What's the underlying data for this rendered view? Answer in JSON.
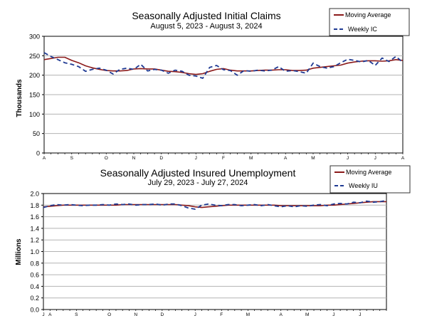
{
  "chart_data": [
    {
      "type": "line",
      "title": "Seasonally Adjusted Initial Claims",
      "subtitle": "August 5, 2023 - August 3, 2024",
      "xlabel": "",
      "ylabel": "Thousands",
      "ylim": [
        0,
        300
      ],
      "yticks": [
        "0",
        "50",
        "100",
        "150",
        "200",
        "250",
        "300"
      ],
      "ytick_values": [
        0,
        50,
        100,
        150,
        200,
        250,
        300
      ],
      "grid": true,
      "legend": "top-right",
      "x_month_labels": [
        "A",
        "S",
        "O",
        "N",
        "D",
        "J",
        "F",
        "M",
        "A",
        "M",
        "J",
        "J",
        "A"
      ],
      "x_month_positions": [
        0,
        4,
        9,
        13,
        17,
        22,
        26,
        30,
        35,
        39,
        44,
        48,
        52
      ],
      "series": [
        {
          "name": "Moving Average",
          "style": "solid",
          "color": "#8b1a1a",
          "values": [
            240,
            243,
            246,
            246,
            238,
            232,
            224,
            219,
            215,
            212,
            211,
            211,
            212,
            216,
            217,
            216,
            216,
            213,
            210,
            209,
            207,
            204,
            202,
            204,
            210,
            215,
            217,
            213,
            211,
            211,
            211,
            212,
            213,
            213,
            214,
            214,
            212,
            212,
            213,
            218,
            220,
            222,
            224,
            226,
            231,
            234,
            236,
            237,
            237,
            236,
            237,
            240,
            238
          ]
        },
        {
          "name": "Weekly IC",
          "style": "dashed",
          "color": "#1f3a93",
          "values": [
            258,
            248,
            240,
            232,
            228,
            222,
            210,
            215,
            218,
            213,
            203,
            215,
            218,
            215,
            228,
            211,
            215,
            213,
            205,
            213,
            210,
            200,
            198,
            192,
            220,
            225,
            214,
            212,
            200,
            212,
            210,
            213,
            211,
            213,
            222,
            210,
            212,
            209,
            205,
            231,
            222,
            218,
            222,
            232,
            241,
            238,
            234,
            238,
            225,
            244,
            235,
            248,
            233
          ]
        }
      ]
    },
    {
      "type": "line",
      "title": "Seasonally Adjusted Insured Unemployment",
      "subtitle": "July 29, 2023 - July 27, 2024",
      "xlabel": "",
      "ylabel": "Millions",
      "ylim": [
        0,
        2
      ],
      "yticks": [
        "0.0",
        "0.2",
        "0.4",
        "0.6",
        "0.8",
        "1.0",
        "1.2",
        "1.4",
        "1.6",
        "1.8",
        "2.0"
      ],
      "ytick_values": [
        0,
        0.2,
        0.4,
        0.6,
        0.8,
        1.0,
        1.2,
        1.4,
        1.6,
        1.8,
        2.0
      ],
      "grid": true,
      "legend": "top-right",
      "x_month_labels": [
        "J",
        "A",
        "S",
        "O",
        "N",
        "D",
        "J",
        "F",
        "M",
        "A",
        "M",
        "J",
        "J"
      ],
      "x_month_positions": [
        0,
        1,
        5,
        10,
        14,
        18,
        23,
        27,
        31,
        36,
        40,
        44,
        48
      ],
      "series": [
        {
          "name": "Moving Average",
          "style": "solid",
          "color": "#8b1a1a",
          "values": [
            1.77,
            1.78,
            1.79,
            1.8,
            1.8,
            1.8,
            1.8,
            1.8,
            1.8,
            1.8,
            1.8,
            1.8,
            1.81,
            1.81,
            1.81,
            1.81,
            1.81,
            1.81,
            1.81,
            1.81,
            1.81,
            1.8,
            1.79,
            1.77,
            1.76,
            1.77,
            1.78,
            1.79,
            1.8,
            1.8,
            1.8,
            1.8,
            1.8,
            1.8,
            1.8,
            1.8,
            1.79,
            1.79,
            1.79,
            1.79,
            1.79,
            1.79,
            1.79,
            1.8,
            1.8,
            1.81,
            1.82,
            1.83,
            1.84,
            1.85,
            1.86,
            1.86,
            1.86
          ]
        },
        {
          "name": "Weekly IU",
          "style": "dashed",
          "color": "#1f3a93",
          "values": [
            1.76,
            1.79,
            1.81,
            1.8,
            1.81,
            1.8,
            1.79,
            1.8,
            1.8,
            1.81,
            1.8,
            1.82,
            1.81,
            1.82,
            1.8,
            1.81,
            1.81,
            1.82,
            1.8,
            1.82,
            1.82,
            1.79,
            1.75,
            1.73,
            1.8,
            1.82,
            1.8,
            1.79,
            1.81,
            1.81,
            1.79,
            1.8,
            1.81,
            1.79,
            1.81,
            1.79,
            1.77,
            1.79,
            1.77,
            1.79,
            1.78,
            1.8,
            1.81,
            1.79,
            1.82,
            1.83,
            1.82,
            1.85,
            1.84,
            1.87,
            1.85,
            1.86,
            1.88
          ]
        }
      ]
    }
  ]
}
